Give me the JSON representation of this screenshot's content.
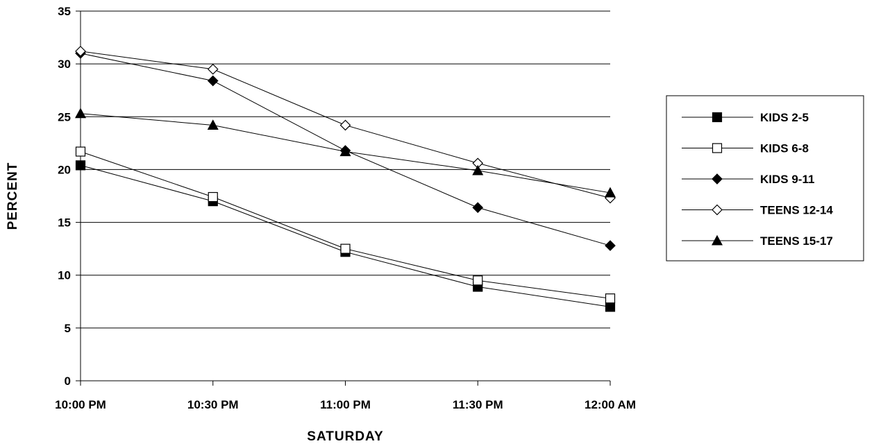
{
  "chart_data": {
    "type": "line",
    "title": "",
    "xlabel": "SATURDAY",
    "ylabel": "PERCENT",
    "categories": [
      "10:00 PM",
      "10:30 PM",
      "11:00 PM",
      "11:30 PM",
      "12:00 AM"
    ],
    "ylim": [
      0,
      35
    ],
    "yticks": [
      0,
      5,
      10,
      15,
      20,
      25,
      30,
      35
    ],
    "grid": true,
    "legend_position": "right",
    "series": [
      {
        "name": "KIDS 2-5",
        "marker": "square-filled",
        "values": [
          20.4,
          17.0,
          12.2,
          8.9,
          7.0
        ]
      },
      {
        "name": "KIDS 6-8",
        "marker": "square-open",
        "values": [
          21.7,
          17.4,
          12.5,
          9.5,
          7.8
        ]
      },
      {
        "name": "KIDS 9-11",
        "marker": "diamond-filled",
        "values": [
          31.0,
          28.4,
          21.8,
          16.4,
          12.8
        ]
      },
      {
        "name": "TEENS 12-14",
        "marker": "diamond-open",
        "values": [
          31.2,
          29.5,
          24.2,
          20.6,
          17.3
        ]
      },
      {
        "name": "TEENS 15-17",
        "marker": "triangle-filled",
        "values": [
          25.3,
          24.2,
          21.7,
          19.9,
          17.8
        ]
      }
    ]
  }
}
